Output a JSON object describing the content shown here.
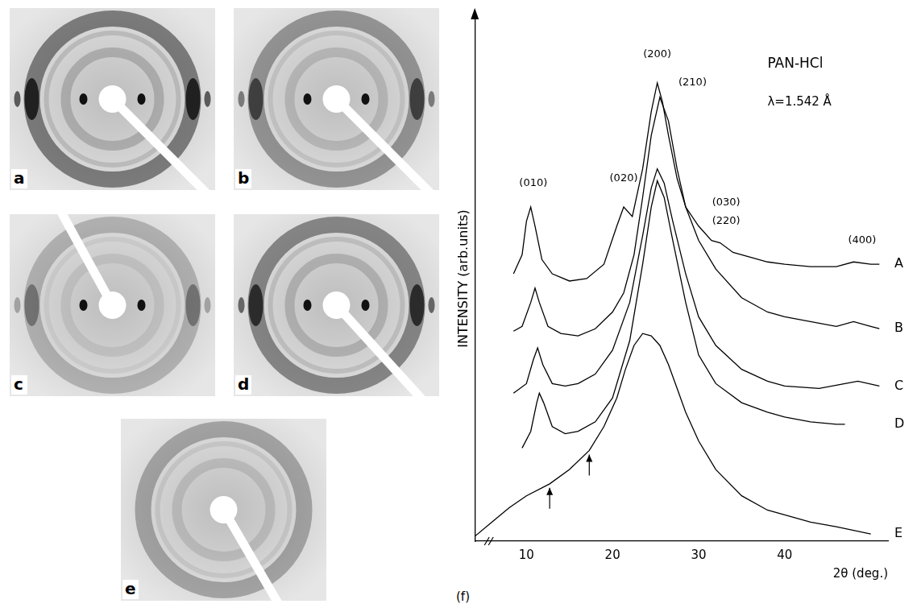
{
  "chart_data": {
    "type": "line",
    "title": "PAN-HCl",
    "xlabel": "2θ (deg.)",
    "ylabel": "INTENSITY (arb.units)",
    "xlim": [
      4,
      52
    ],
    "xticks": [
      10,
      20,
      30,
      40
    ],
    "ylim": [
      0,
      110
    ],
    "grid": false,
    "tick_labels": "x",
    "annotations": [
      {
        "text": "PAN-HCl",
        "x": 38,
        "y": 100
      },
      {
        "text": "λ=1.542 Å",
        "x": 38,
        "y": 92
      },
      {
        "text": "(010)",
        "x": 10.8,
        "y": 75
      },
      {
        "text": "(020)",
        "x": 21.3,
        "y": 76
      },
      {
        "text": "(200)",
        "x": 25.2,
        "y": 102
      },
      {
        "text": "(210)",
        "x": 29.3,
        "y": 96
      },
      {
        "text": "(030)",
        "x": 33.2,
        "y": 71
      },
      {
        "text": "(220)",
        "x": 33.2,
        "y": 67
      },
      {
        "text": "(400)",
        "x": 49,
        "y": 63
      }
    ],
    "series": [
      {
        "name": "A",
        "color": "#000000",
        "x": [
          8.5,
          9.5,
          10.0,
          10.5,
          11.0,
          11.8,
          13,
          15,
          17,
          19,
          20.5,
          21.3,
          22.3,
          23.5,
          24.5,
          25.2,
          25.8,
          26.5,
          27.5,
          28.5,
          30,
          31.5,
          32.5,
          34,
          36,
          38,
          40,
          43,
          46,
          48,
          50,
          51
        ],
        "values": [
          56,
          60,
          67,
          70,
          66,
          59,
          56,
          54.5,
          55,
          58,
          66,
          70,
          68,
          78,
          90,
          96,
          92,
          85,
          76,
          70,
          66,
          63,
          62.5,
          60.5,
          59.5,
          58.5,
          58,
          57.5,
          57.5,
          58.5,
          58,
          58
        ]
      },
      {
        "name": "B",
        "color": "#000000",
        "x": [
          8.5,
          9.5,
          10.5,
          11.0,
          11.5,
          12.5,
          14,
          16,
          18,
          20,
          21.3,
          22.5,
          23.5,
          24.5,
          25.5,
          26.5,
          27.5,
          28.5,
          30,
          32,
          35,
          38,
          40,
          43,
          46,
          48,
          50,
          51
        ],
        "values": [
          44,
          45,
          50,
          53,
          50,
          45,
          43.5,
          43,
          44.5,
          48,
          52,
          60,
          72,
          85,
          93,
          88,
          78,
          70,
          63,
          57,
          51,
          48,
          47,
          46,
          45,
          46,
          45,
          44.5
        ]
      },
      {
        "name": "C",
        "color": "#000000",
        "x": [
          8.5,
          10,
          10.8,
          11.3,
          11.9,
          13,
          14.5,
          16,
          18,
          20,
          22,
          23.5,
          24.5,
          25.2,
          26,
          27,
          28.5,
          30,
          32,
          35,
          38,
          40,
          44,
          47,
          48.5,
          51
        ],
        "values": [
          31,
          33,
          38,
          40.5,
          37,
          33,
          32.5,
          33,
          35,
          40,
          50,
          64,
          74,
          78,
          75,
          67,
          56,
          47,
          41,
          36,
          33.5,
          32.5,
          32,
          33,
          33.5,
          32.5
        ]
      },
      {
        "name": "D",
        "color": "#000000",
        "x": [
          9.5,
          10.5,
          11.2,
          11.5,
          12,
          13,
          14.5,
          16,
          18,
          20,
          22,
          23.5,
          24.5,
          25.2,
          26,
          27,
          28.5,
          30,
          32,
          35,
          38,
          40,
          43,
          46,
          47
        ],
        "values": [
          19.5,
          23,
          29,
          31,
          29,
          24,
          22.5,
          23,
          25,
          30,
          42,
          58,
          70,
          75.5,
          72,
          63,
          50,
          39,
          33,
          29,
          27,
          26,
          25,
          24.5,
          24.5
        ]
      },
      {
        "name": "E",
        "color": "#000000",
        "x": [
          4,
          6,
          8,
          10,
          12.7,
          15,
          17.3,
          19,
          20.5,
          21.5,
          22.5,
          23.5,
          24.5,
          25.5,
          26.5,
          27.5,
          28.5,
          30,
          32,
          35,
          38,
          40,
          43,
          46,
          50
        ],
        "values": [
          1,
          4,
          7,
          9.5,
          12,
          15,
          19,
          24,
          30,
          36,
          41,
          43.5,
          43,
          41,
          37,
          32,
          27,
          21,
          15,
          9.5,
          6.5,
          5.5,
          4,
          3,
          1.5
        ],
        "arrows": [
          12.7,
          17.3
        ]
      }
    ]
  },
  "panels": [
    "a",
    "b",
    "c",
    "d",
    "e",
    "(f)"
  ]
}
